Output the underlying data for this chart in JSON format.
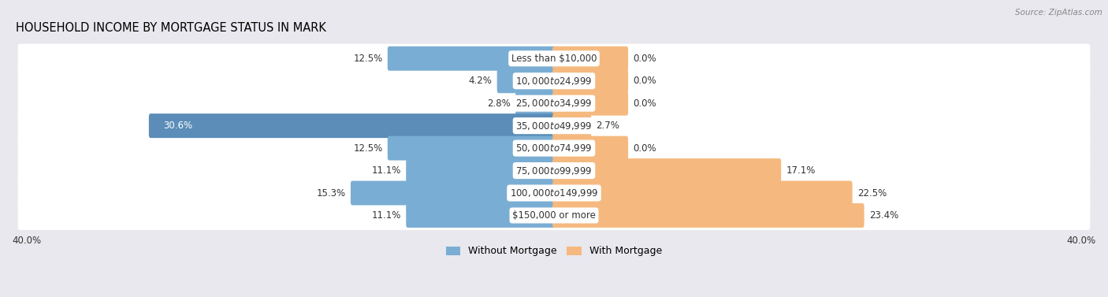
{
  "title": "HOUSEHOLD INCOME BY MORTGAGE STATUS IN MARK",
  "source": "Source: ZipAtlas.com",
  "categories": [
    "Less than $10,000",
    "$10,000 to $24,999",
    "$25,000 to $34,999",
    "$35,000 to $49,999",
    "$50,000 to $74,999",
    "$75,000 to $99,999",
    "$100,000 to $149,999",
    "$150,000 or more"
  ],
  "without_mortgage": [
    12.5,
    4.2,
    2.8,
    30.6,
    12.5,
    11.1,
    15.3,
    11.1
  ],
  "with_mortgage": [
    0.0,
    0.0,
    0.0,
    2.7,
    0.0,
    17.1,
    22.5,
    23.4
  ],
  "without_color": "#7aadd3",
  "without_color_dark": "#5b8db8",
  "with_color": "#f5b97f",
  "axis_max": 40.0,
  "axis_label": "40.0%",
  "background_color": "#e8e8ee",
  "row_bg_color": "#ffffff",
  "title_fontsize": 10.5,
  "label_fontsize": 8.5,
  "category_fontsize": 8.5,
  "legend_fontsize": 9,
  "with_mortgage_stub": 5.5
}
